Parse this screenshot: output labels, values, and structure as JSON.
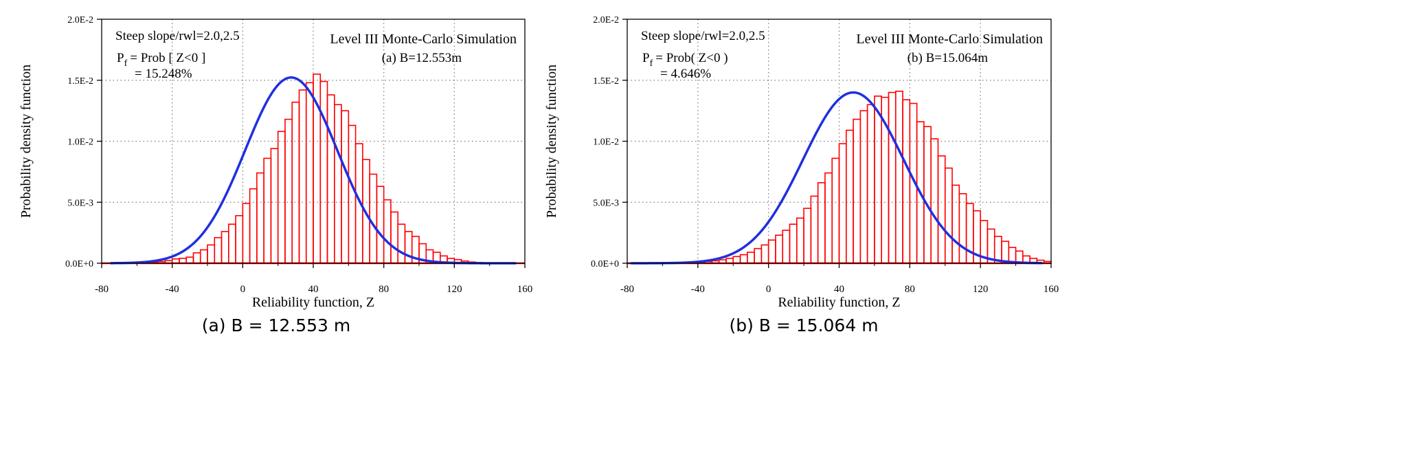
{
  "chart_data": [
    {
      "type": "bar",
      "subplot_caption": "(a) B = 12.553 m",
      "annotations": {
        "conditions": "Steep slope/rwl=2.0,2.5",
        "pf_lhs": "P",
        "pf_sub": "f",
        "pf_rhs": "= Prob [ Z<0 ]",
        "pf_value": "= 15.248%",
        "method": "Level III Monte-Carlo Simulation",
        "case": "(a) B=12.553m"
      },
      "xlabel": "Reliability function, Z",
      "ylabel": "Probability density function",
      "xlim": [
        -80,
        160
      ],
      "ylim": [
        0,
        0.02
      ],
      "xticks": [
        -80,
        -40,
        0,
        40,
        80,
        120,
        160
      ],
      "xtick_labels": [
        "-80",
        "-40",
        "0",
        "40",
        "80",
        "120",
        "160"
      ],
      "yticks": [
        0,
        0.005,
        0.01,
        0.015,
        0.02
      ],
      "ytick_labels": [
        "0.0E+0",
        "5.0E-3",
        "1.0E-2",
        "1.5E-2",
        "2.0E-2"
      ],
      "grid": true,
      "histogram": {
        "color": "#ff0000",
        "bin_width": 4,
        "bin_start": -80,
        "density": [
          0,
          0,
          0,
          0,
          0,
          3e-05,
          5e-05,
          0.0001,
          0.00014,
          0.00022,
          0.00035,
          0.0004,
          0.0005,
          0.00085,
          0.0011,
          0.0015,
          0.0021,
          0.0026,
          0.0032,
          0.0039,
          0.0049,
          0.0061,
          0.0074,
          0.0086,
          0.0094,
          0.0108,
          0.0118,
          0.0132,
          0.0142,
          0.0148,
          0.0155,
          0.0149,
          0.0138,
          0.013,
          0.0125,
          0.0113,
          0.0098,
          0.0085,
          0.0073,
          0.0063,
          0.0052,
          0.0042,
          0.0032,
          0.0026,
          0.0022,
          0.0016,
          0.0011,
          0.0009,
          0.0006,
          0.0004,
          0.0003,
          0.00018,
          0.0001,
          6e-05,
          3e-05,
          1e-05,
          0,
          0,
          0,
          0
        ]
      },
      "fit": {
        "type": "normal",
        "mean": 27.5,
        "std": 26.2,
        "color": "#1f2fe0",
        "x_range": [
          -75,
          155
        ]
      }
    },
    {
      "type": "bar",
      "subplot_caption": "(b) B = 15.064 m",
      "annotations": {
        "conditions": "Steep slope/rwl=2.0,2.5",
        "pf_lhs": "P",
        "pf_sub": "f",
        "pf_rhs": "= Prob( Z<0 )",
        "pf_value": "= 4.646%",
        "method": "Level III Monte-Carlo Simulation",
        "case": "(b) B=15.064m"
      },
      "xlabel": "Reliability function, Z",
      "ylabel": "Probability density function",
      "xlim": [
        -80,
        160
      ],
      "ylim": [
        0,
        0.02
      ],
      "xticks": [
        -80,
        -40,
        0,
        40,
        80,
        120,
        160
      ],
      "xtick_labels": [
        "-80",
        "-40",
        "0",
        "40",
        "80",
        "120",
        "160"
      ],
      "yticks": [
        0,
        0.005,
        0.01,
        0.015,
        0.02
      ],
      "ytick_labels": [
        "0.0E+0",
        "5.0E-3",
        "1.0E-2",
        "1.5E-2",
        "2.0E-2"
      ],
      "grid": true,
      "histogram": {
        "color": "#ff0000",
        "bin_width": 4,
        "bin_start": -80,
        "density": [
          0,
          0,
          0,
          0,
          0,
          0,
          0,
          2e-05,
          4e-05,
          6e-05,
          0.0001,
          0.00014,
          0.0002,
          0.00028,
          0.0004,
          0.00055,
          0.0007,
          0.0009,
          0.0012,
          0.0015,
          0.0019,
          0.0023,
          0.0027,
          0.0032,
          0.0037,
          0.0045,
          0.0055,
          0.0066,
          0.0074,
          0.0086,
          0.0098,
          0.0109,
          0.0118,
          0.0125,
          0.013,
          0.0137,
          0.0136,
          0.014,
          0.0141,
          0.0134,
          0.0131,
          0.0116,
          0.0112,
          0.0102,
          0.0088,
          0.0078,
          0.0064,
          0.0057,
          0.0049,
          0.0043,
          0.0035,
          0.0028,
          0.0022,
          0.0018,
          0.0013,
          0.001,
          0.0006,
          0.0004,
          0.00025,
          0.00015
        ]
      },
      "fit": {
        "type": "normal",
        "mean": 48,
        "std": 28.5,
        "color": "#1f2fe0",
        "x_range": [
          -78,
          155
        ]
      }
    }
  ]
}
